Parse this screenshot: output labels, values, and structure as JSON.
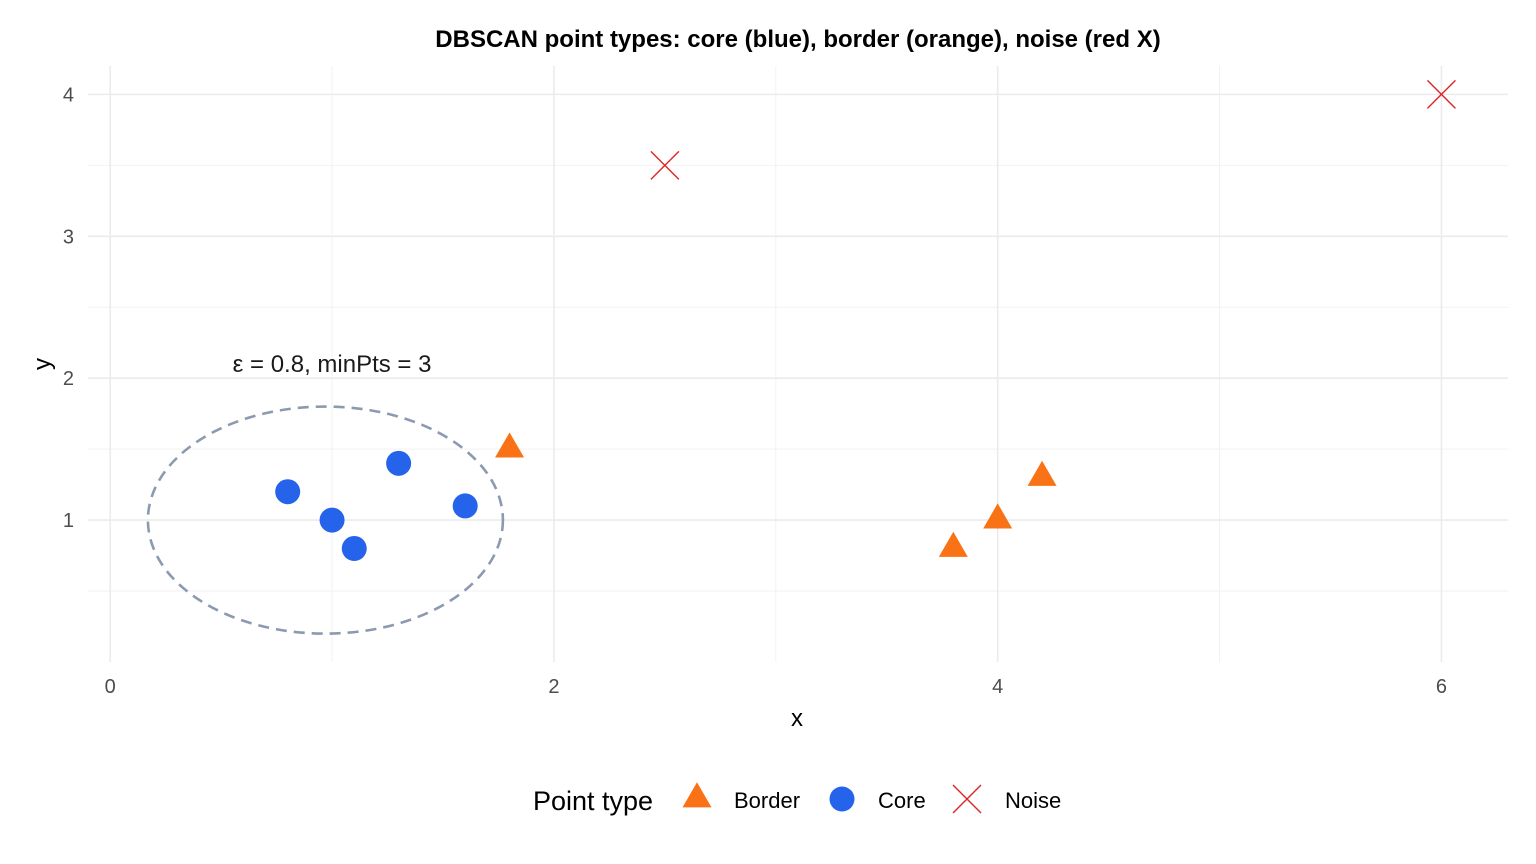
{
  "chart_data": {
    "type": "scatter",
    "title": "DBSCAN point types: core (blue), border (orange), noise (red X)",
    "xlabel": "x",
    "ylabel": "y",
    "xlim": [
      -0.1,
      6.3
    ],
    "ylim": [
      0.0,
      4.2
    ],
    "x_ticks": [
      0,
      2,
      4,
      6
    ],
    "y_ticks": [
      1,
      2,
      3,
      4
    ],
    "x_tick_labels": [
      "0",
      "2",
      "4",
      "6"
    ],
    "y_tick_labels": [
      "1",
      "2",
      "3",
      "4"
    ],
    "grid": true,
    "legend": {
      "title": "Point type",
      "position": "bottom",
      "entries": [
        "Border",
        "Core",
        "Noise"
      ]
    },
    "series": [
      {
        "name": "Border",
        "shape": "triangle",
        "color": "#F97316",
        "points": [
          [
            1.8,
            1.5
          ],
          [
            3.8,
            0.8
          ],
          [
            4.0,
            1.0
          ],
          [
            4.2,
            1.3
          ]
        ]
      },
      {
        "name": "Core",
        "shape": "circle",
        "color": "#2563EB",
        "points": [
          [
            0.8,
            1.2
          ],
          [
            1.0,
            1.0
          ],
          [
            1.1,
            0.8
          ],
          [
            1.3,
            1.4
          ],
          [
            1.6,
            1.1
          ]
        ]
      },
      {
        "name": "Noise",
        "shape": "x",
        "color": "#DC2626",
        "points": [
          [
            2.5,
            3.5
          ],
          [
            6.0,
            4.0
          ]
        ]
      }
    ],
    "annotations": [
      {
        "text": "ε = 0.8, minPts = 3",
        "x": 1.0,
        "y": 2.1
      }
    ],
    "epsilon_circle": {
      "center": [
        0.97,
        1.0
      ],
      "radius": 0.8,
      "color": "#8C9AB0",
      "style": "dashed"
    }
  }
}
